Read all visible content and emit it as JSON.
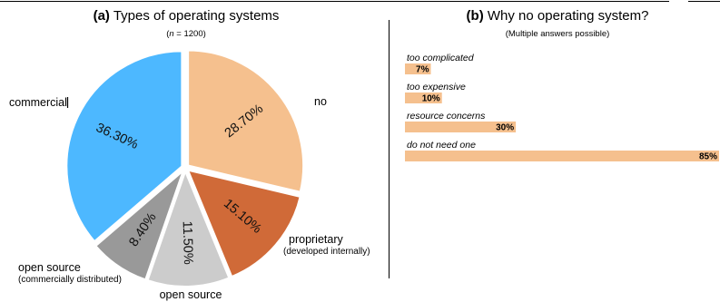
{
  "colors": {
    "commercial": "#4db8ff",
    "open_source_commercial": "#999999",
    "open_source": "#cccccc",
    "proprietary": "#d06a38",
    "no": "#f5c08e",
    "bar": "#f5c08e"
  },
  "chart_data": [
    {
      "type": "pie",
      "panel_letter": "(a)",
      "title": "Types of operating systems",
      "subtitle_prefix": "n",
      "subtitle_suffix": " = 1200",
      "slices": [
        {
          "label": "no",
          "sublabel": "",
          "value": 28.7,
          "pct_text": "28.70%",
          "color": "#f5c08e"
        },
        {
          "label": "proprietary",
          "sublabel": "(developed internally)",
          "value": 15.1,
          "pct_text": "15.10%",
          "color": "#d06a38"
        },
        {
          "label": "open source",
          "sublabel": "",
          "value": 11.5,
          "pct_text": "11.50%",
          "color": "#cccccc"
        },
        {
          "label": "open source",
          "sublabel": "(commercially distributed)",
          "value": 8.4,
          "pct_text": "8.40%",
          "color": "#999999"
        },
        {
          "label": "commercial",
          "sublabel": "",
          "value": 36.3,
          "pct_text": "36.30%",
          "color": "#4db8ff"
        }
      ]
    },
    {
      "type": "bar",
      "orientation": "horizontal",
      "panel_letter": "(b)",
      "title": "Why no operating system?",
      "subtitle": "(Multiple answers possible)",
      "categories": [
        "too complicated",
        "too expensive",
        "resource concerns",
        "do not need one"
      ],
      "values": [
        7,
        10,
        30,
        85
      ],
      "value_labels": [
        "7%",
        "10%",
        "30%",
        "85%"
      ],
      "xlim": [
        0,
        85
      ]
    }
  ]
}
